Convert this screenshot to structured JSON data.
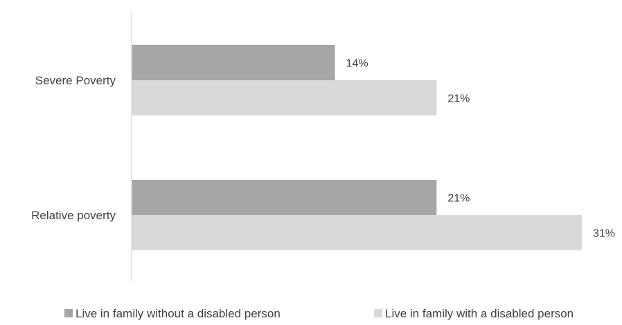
{
  "chart_data": {
    "type": "bar",
    "orientation": "horizontal",
    "categories": [
      "Severe Poverty",
      "Relative poverty"
    ],
    "series": [
      {
        "name": "Live in family without a disabled person",
        "values": [
          14,
          21
        ],
        "labels": [
          "14%",
          "21%"
        ],
        "color": "#a6a6a6"
      },
      {
        "name": "Live in family with a disabled person",
        "values": [
          21,
          31
        ],
        "labels": [
          "21%",
          "31%"
        ],
        "color": "#d9d9d9"
      }
    ],
    "xlim": [
      0,
      31
    ],
    "grid": false,
    "legend_position": "bottom",
    "axis_color": "#d9d9d9"
  }
}
